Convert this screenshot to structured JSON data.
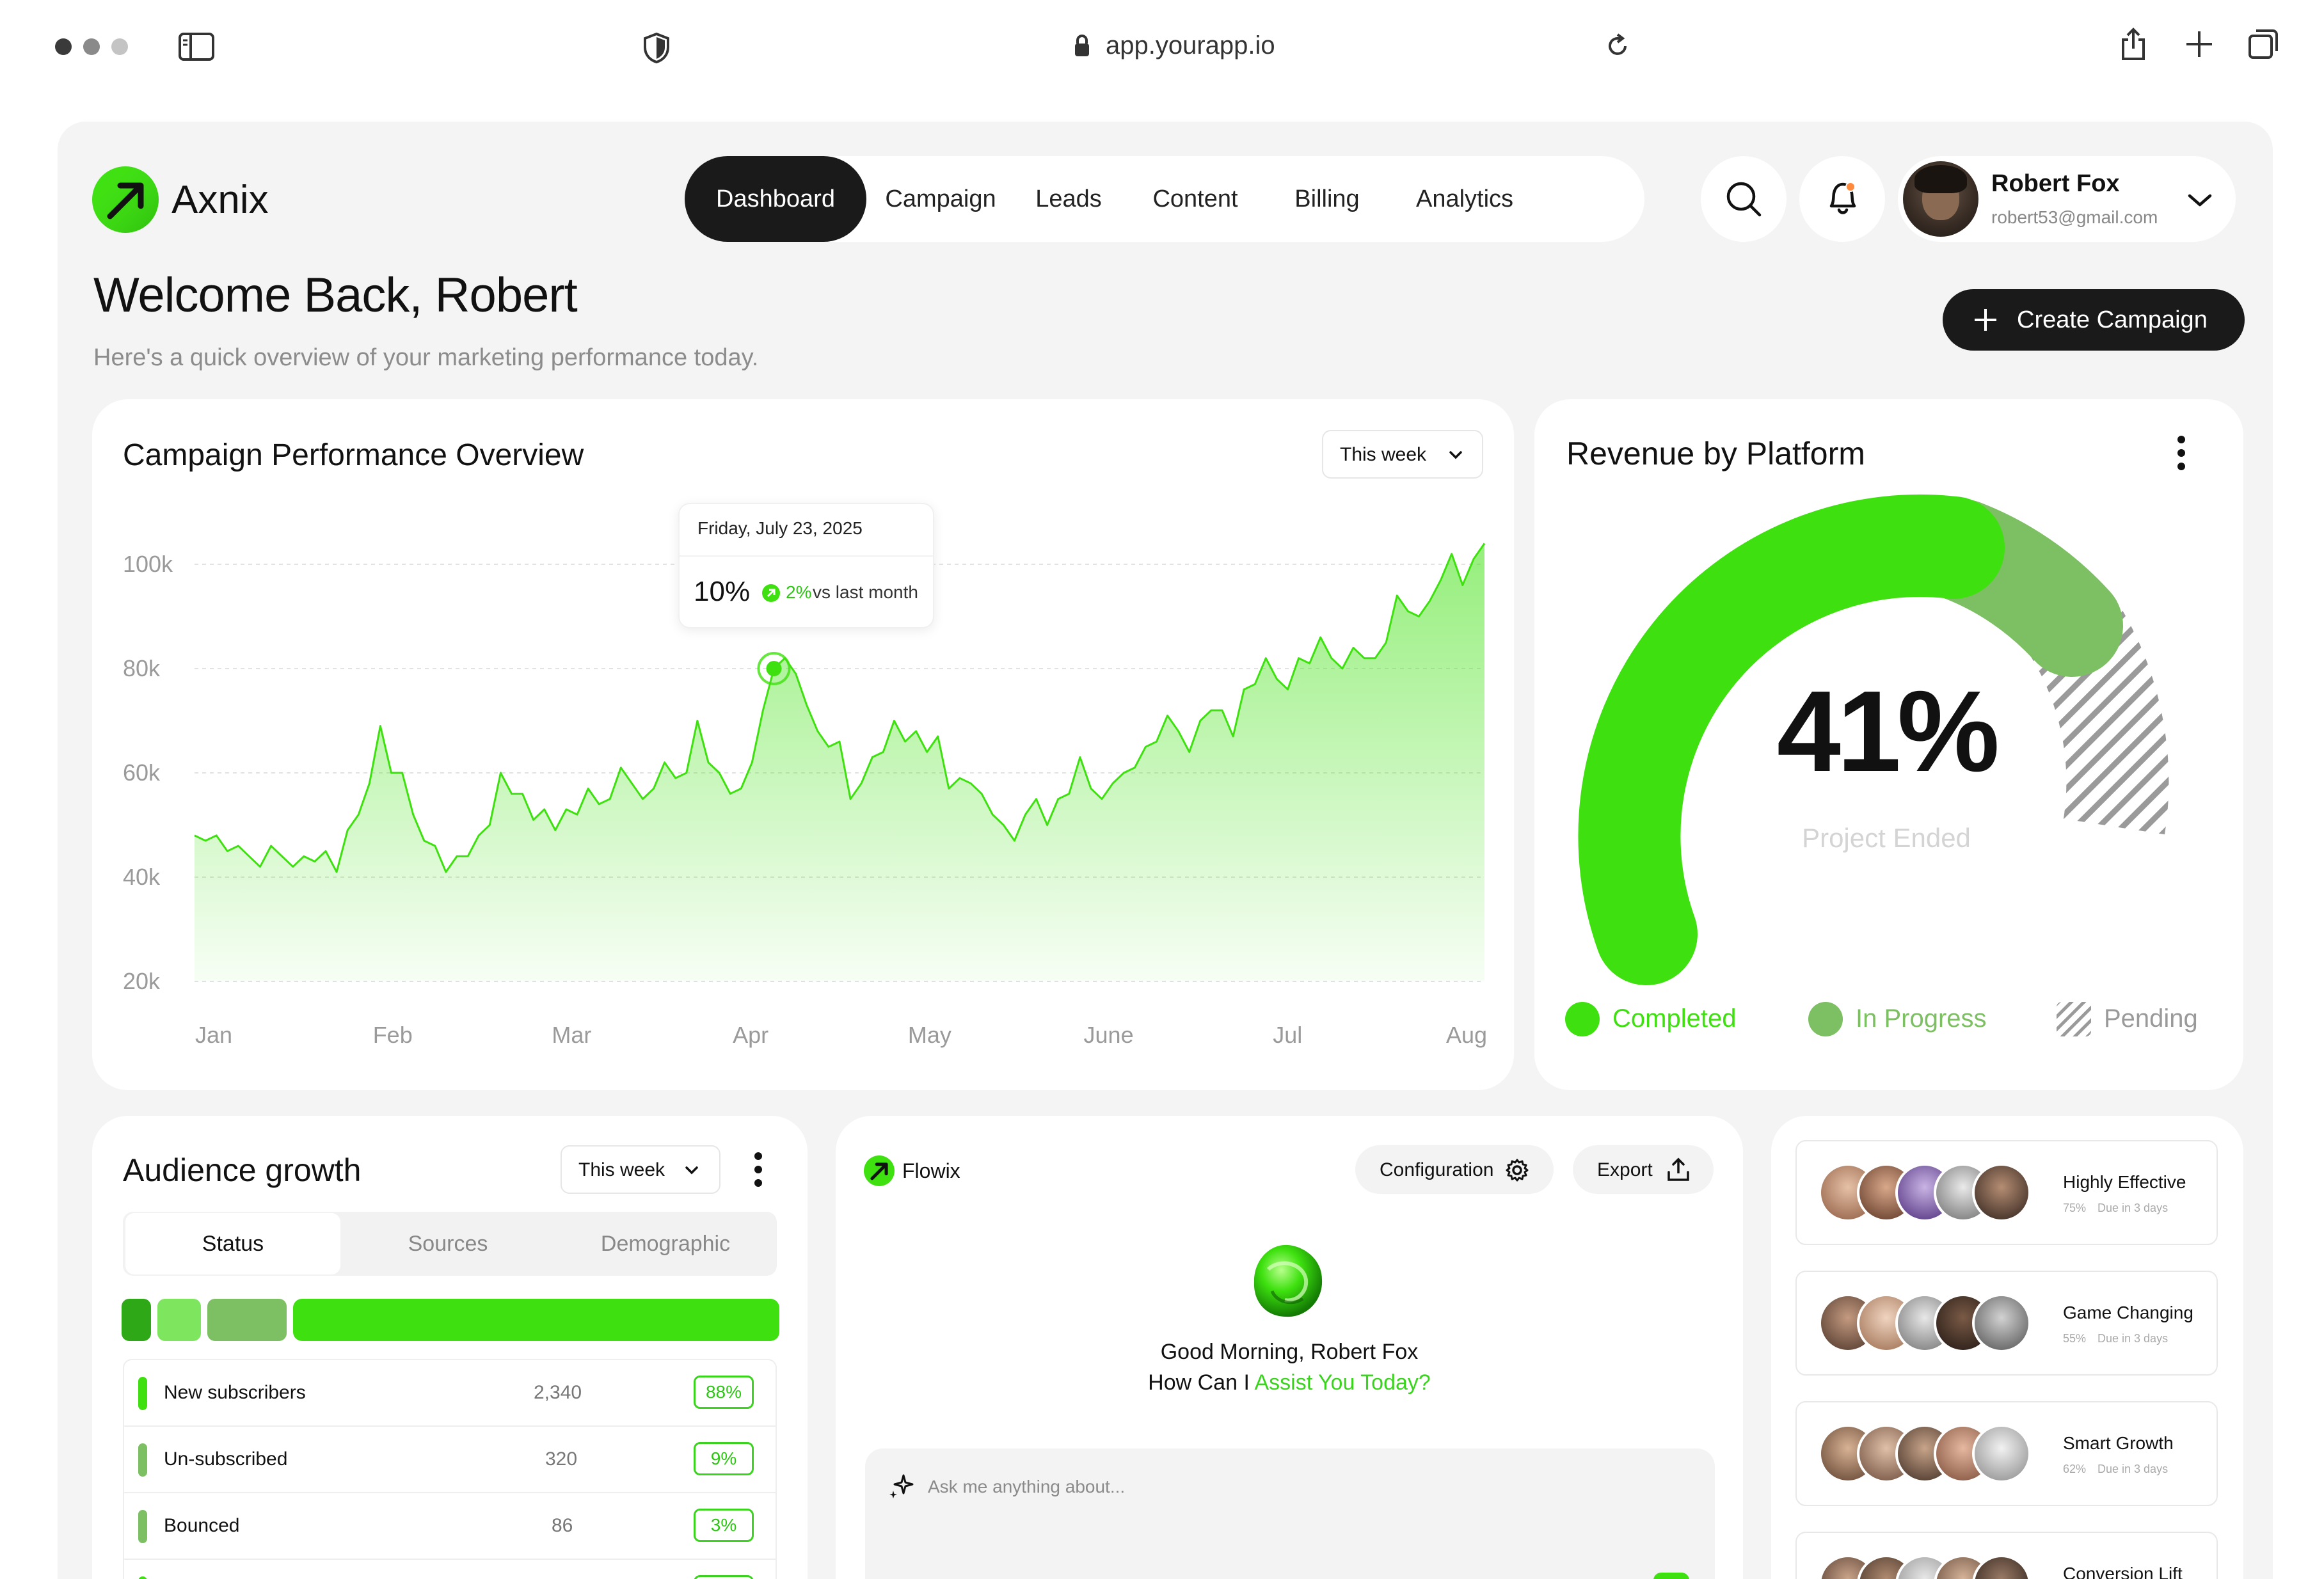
{
  "browser": {
    "url": "app.yourapp.io"
  },
  "brand": {
    "name": "Axnix",
    "accent": "#3ee10f",
    "accent_mid": "#7dbf63",
    "dark": "#1a1a1a"
  },
  "nav": {
    "items": [
      {
        "label": "Dashboard",
        "active": true
      },
      {
        "label": "Campaign",
        "active": false
      },
      {
        "label": "Leads",
        "active": false
      },
      {
        "label": "Content",
        "active": false
      },
      {
        "label": "Billing",
        "active": false
      },
      {
        "label": "Analytics",
        "active": false
      }
    ]
  },
  "user": {
    "name": "Robert Fox",
    "email": "robert53@gmail.com"
  },
  "header": {
    "title": "Welcome Back, Robert",
    "subtitle": "Here's a quick overview of your marketing performance today.",
    "create_button": "Create Campaign"
  },
  "performance": {
    "title": "Campaign Performance Overview",
    "filter": "This week",
    "tooltip": {
      "date": "Friday, July 23, 2025",
      "value": "10%",
      "change": "2%",
      "change_suffix": "vs last month"
    }
  },
  "chart_data": {
    "type": "area",
    "title": "Campaign Performance Overview",
    "x_labels": [
      "Jan",
      "Feb",
      "Mar",
      "Apr",
      "May",
      "June",
      "Jul",
      "Aug"
    ],
    "y_ticks": [
      "100k",
      "80k",
      "60k",
      "40k",
      "20k"
    ],
    "ylim": [
      20000,
      100000
    ],
    "grid": true,
    "series": [
      {
        "values": [
          48000,
          47000,
          48000,
          45000,
          46000,
          44000,
          42000,
          46000,
          44000,
          42000,
          44000,
          43000,
          45000,
          41000,
          49000,
          52000,
          58000,
          69000,
          60000,
          60000,
          52000,
          47000,
          46000,
          41000,
          44000,
          44000,
          48000,
          50000,
          60000,
          56000,
          56000,
          51000,
          53000,
          49000,
          53000,
          52000,
          57000,
          54000,
          55000,
          61000,
          58000,
          55000,
          57000,
          62000,
          59000,
          60000,
          70000,
          62000,
          60000,
          56000,
          57000,
          62000,
          72000,
          80000,
          82000,
          79000,
          73000,
          68000,
          65000,
          66000,
          55000,
          58000,
          63000,
          64000,
          70000,
          66000,
          68000,
          64000,
          67000,
          57000,
          59000,
          58000,
          56000,
          52000,
          50000,
          47000,
          52000,
          55000,
          50000,
          55000,
          56000,
          63000,
          57000,
          55000,
          58000,
          60000,
          61000,
          65000,
          66000,
          71000,
          68000,
          64000,
          70000,
          72000,
          72000,
          67000,
          76000,
          77000,
          82000,
          78000,
          76000,
          82000,
          81000,
          86000,
          82000,
          80000,
          84000,
          82000,
          82000,
          85000,
          94000,
          91000,
          90000,
          93000,
          97000,
          102000,
          96000,
          101000,
          104000
        ]
      }
    ]
  },
  "revenue": {
    "title": "Revenue by Platform",
    "percent": "41%",
    "caption": "Project Ended",
    "legend": [
      {
        "label": "Completed",
        "color": "#3ee10f"
      },
      {
        "label": "In Progress",
        "color": "#7dbf63"
      },
      {
        "label": "Pending",
        "color": "#9a9a9a"
      }
    ]
  },
  "audience": {
    "title": "Audience growth",
    "filter": "This week",
    "tabs": [
      "Status",
      "Sources",
      "Demographic"
    ],
    "rows": [
      {
        "label": "New subscribers",
        "value": "2,340",
        "pct": "88%",
        "color": "#3ee10f"
      },
      {
        "label": "Un-subscribed",
        "value": "320",
        "pct": "9%",
        "color": "#7dbf63"
      },
      {
        "label": "Bounced",
        "value": "86",
        "pct": "3%",
        "color": "#7dbf63"
      }
    ]
  },
  "assistant": {
    "name": "Flowix",
    "config_label": "Configuration",
    "export_label": "Export",
    "greeting": "Good Morning, Robert Fox",
    "prompt_prefix": "How Can I",
    "prompt_highlight": "Assist You Today?",
    "input_placeholder": "Ask me anything about..."
  },
  "teams": [
    {
      "title": "Highly Effective",
      "pct": "75%",
      "due": "Due in 3 days"
    },
    {
      "title": "Game Changing",
      "pct": "55%",
      "due": "Due in 3 days"
    },
    {
      "title": "Smart Growth",
      "pct": "62%",
      "due": "Due in 3 days"
    },
    {
      "title": "Conversion Lift",
      "pct": "",
      "due": ""
    }
  ]
}
